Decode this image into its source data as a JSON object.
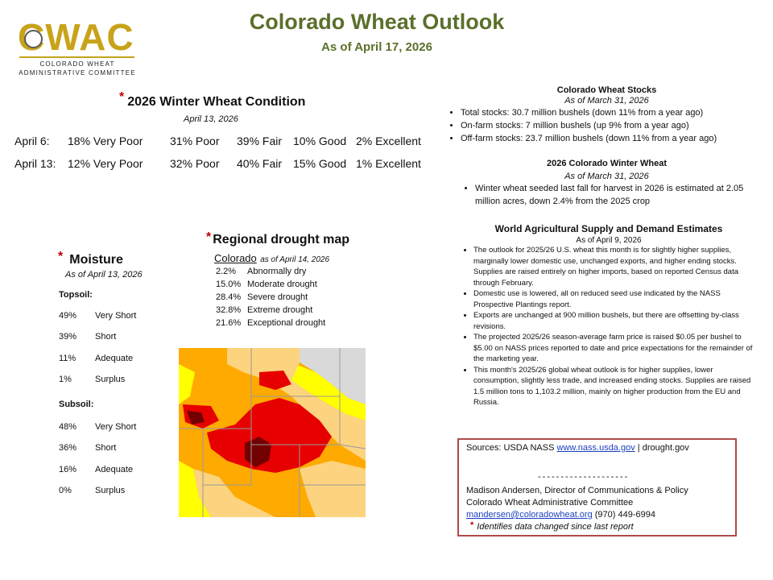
{
  "header": {
    "title": "Colorado Wheat Outlook",
    "subtitle": "As of April 17, 2026"
  },
  "logo": {
    "word": "CWAC",
    "line1": "COLORADO WHEAT",
    "line2": "ADMINISTRATIVE COMMITTEE"
  },
  "marker": "*",
  "condition": {
    "heading": "2026 Winter Wheat Condition",
    "date": "April 13, 2026",
    "rows": [
      {
        "label": "April 6:",
        "very_poor": "18% Very Poor",
        "poor": "31% Poor",
        "fair": "39% Fair",
        "good": "10% Good",
        "excellent": "2% Excellent"
      },
      {
        "label": "April 13:",
        "very_poor": "12% Very Poor",
        "poor": "32% Poor",
        "fair": "40% Fair",
        "good": "15% Good",
        "excellent": "1% Excellent"
      }
    ]
  },
  "moisture": {
    "heading": "Moisture",
    "date": "As of April 13, 2026",
    "topsoil_label": "Topsoil:",
    "topsoil": [
      {
        "pct": "49%",
        "label": "Very Short"
      },
      {
        "pct": "39%",
        "label": "Short"
      },
      {
        "pct": "11%",
        "label": "Adequate"
      },
      {
        "pct": "1%",
        "label": "Surplus"
      }
    ],
    "subsoil_label": "Subsoil:",
    "subsoil": [
      {
        "pct": "48%",
        "label": "Very Short"
      },
      {
        "pct": "36%",
        "label": "Short"
      },
      {
        "pct": "16%",
        "label": "Adequate"
      },
      {
        "pct": "0%",
        "label": "Surplus"
      }
    ]
  },
  "drought": {
    "heading": "Regional drought map",
    "state": "Colorado",
    "date": "as of April 14, 2026",
    "items": [
      {
        "pct": "2.2%",
        "label": "Abnormally dry"
      },
      {
        "pct": "15.0%",
        "label": "Moderate drought"
      },
      {
        "pct": "28.4%",
        "label": "Severe drought"
      },
      {
        "pct": "32.8%",
        "label": "Extreme drought"
      },
      {
        "pct": "21.6%",
        "label": "Exceptional drought"
      }
    ],
    "colors": {
      "none": "#d9d9d9",
      "abnormally_dry": "#ffff00",
      "moderate": "#fcd37f",
      "severe": "#ffaa00",
      "extreme": "#e60000",
      "exceptional": "#730000"
    }
  },
  "stocks": {
    "heading": "Colorado Wheat Stocks",
    "date": "As of March 31, 2026",
    "bullets": [
      "Total stocks: 30.7 million bushels (down 11% from a year ago)",
      "On-farm stocks: 7 million bushels (up 9% from a year ago)",
      "Off-farm stocks: 23.7 million bushels (down 11% from a year ago)"
    ]
  },
  "winter_wheat": {
    "heading": "2026 Colorado Winter Wheat",
    "date": "As of March 31, 2026",
    "bullets": [
      "Winter wheat seeded last fall for harvest in 2026 is estimated at 2.05 million acres, down 2.4% from the 2025 crop"
    ]
  },
  "wasde": {
    "heading": "World Agricultural Supply and Demand Estimates",
    "date": "As of April 9, 2026",
    "bullets": [
      "The outlook for 2025/26 U.S. wheat this month is for slightly higher supplies, marginally lower domestic use, unchanged exports, and higher ending stocks. Supplies are raised entirely on higher imports, based on reported Census data through February.",
      "Domestic use is lowered, all on reduced seed use indicated by the NASS Prospective Plantings report.",
      "Exports are unchanged at 900 million bushels, but there are offsetting by-class revisions.",
      "The projected 2025/26 season-average farm price is raised $0.05 per bushel to $5.00 on NASS prices reported to date and price expectations for the remainder of the marketing year.",
      "This month's 2025/26 global wheat outlook is for higher supplies, lower consumption, slightly less trade, and increased ending stocks. Supplies are raised 1.5 million tons to 1,103.2 million, mainly on higher production from the EU and Russia."
    ]
  },
  "sources": {
    "prefix": "Sources: USDA NASS",
    "link1": "www.nass.usda.gov",
    "sep": "|",
    "source2": "drought.gov",
    "divider": "--------------------",
    "contact_name": "Madison Andersen, Director of Communications & Policy",
    "org": "Colorado Wheat Administrative Committee",
    "email": "mandersen@coloradowheat.org",
    "phone": "(970) 449-6994",
    "note": "Identifies data changed since last report"
  }
}
